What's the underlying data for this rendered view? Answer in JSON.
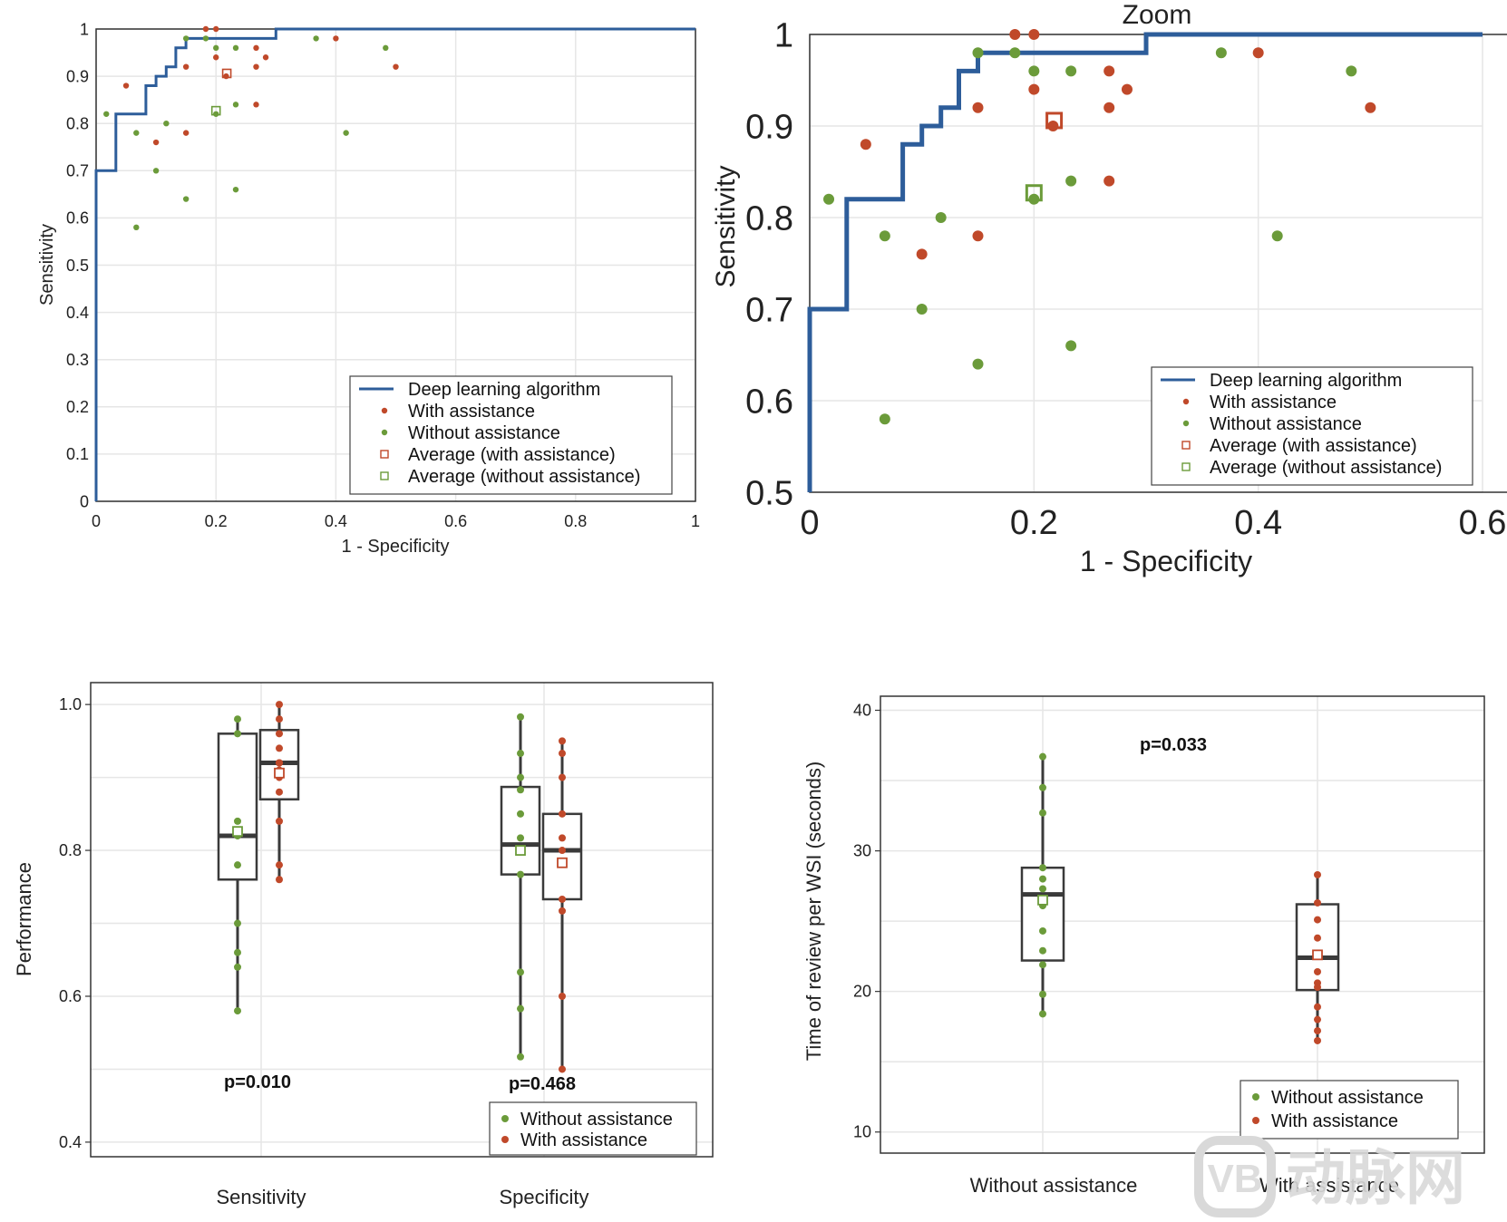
{
  "colors": {
    "algo": "#2d5d9a",
    "with": "#c0492a",
    "without": "#6b9b3a",
    "box": "#3a3a3a"
  },
  "chart_data": [
    {
      "id": "roc_full",
      "type": "scatter",
      "title": "",
      "xlabel": "1 - Specificity",
      "ylabel": "Sensitivity",
      "xlim": [
        0,
        1
      ],
      "ylim": [
        0,
        1
      ],
      "xticks": [
        "0",
        "0.2",
        "0.4",
        "0.6",
        "0.8",
        "1"
      ],
      "xtick_values": [
        0,
        0.2,
        0.4,
        0.6,
        0.8,
        1
      ],
      "yticks": [
        "0",
        "0.1",
        "0.2",
        "0.3",
        "0.4",
        "0.5",
        "0.6",
        "0.7",
        "0.8",
        "0.9",
        "1"
      ],
      "ytick_values": [
        0,
        0.1,
        0.2,
        0.3,
        0.4,
        0.5,
        0.6,
        0.7,
        0.8,
        0.9,
        1
      ],
      "legend": [
        "Deep learning algorithm",
        "With assistance",
        "Without assistance",
        "Average (with assistance)",
        "Average (without assistance)"
      ],
      "legend_position": "bottom-right"
    },
    {
      "id": "roc_zoom",
      "type": "scatter",
      "title": "Zoom",
      "xlabel": "1 - Specificity",
      "ylabel": "Sensitivity",
      "xlim": [
        0,
        0.6
      ],
      "ylim": [
        0.5,
        1
      ],
      "xticks": [
        "0",
        "0.2",
        "0.4",
        "0.6"
      ],
      "xtick_values": [
        0,
        0.2,
        0.4,
        0.6
      ],
      "yticks": [
        "0.5",
        "0.6",
        "0.7",
        "0.8",
        "0.9",
        "1"
      ],
      "ytick_values": [
        0.5,
        0.6,
        0.7,
        0.8,
        0.9,
        1
      ],
      "legend": [
        "Deep learning algorithm",
        "With assistance",
        "Without assistance",
        "Average (with assistance)",
        "Average (without assistance)"
      ],
      "legend_position": "bottom-right"
    },
    {
      "id": "performance_box",
      "type": "box",
      "xlabel": "",
      "ylabel": "Performance",
      "ylim": [
        0.38,
        1.03
      ],
      "yticks": [
        "0.4",
        "0.6",
        "0.8",
        "1.0"
      ],
      "ytick_values": [
        0.4,
        0.6,
        0.8,
        1.0
      ],
      "categories": [
        "Sensitivity",
        "Specificity"
      ],
      "p_values": [
        "p=0.010",
        "p=0.468"
      ],
      "legend": [
        "Without assistance",
        "With assistance"
      ],
      "legend_position": "bottom-right",
      "boxes": [
        {
          "category": "Sensitivity",
          "series": "without",
          "min": 0.58,
          "q1": 0.76,
          "median": 0.82,
          "q3": 0.96,
          "max": 0.98,
          "mean": 0.826,
          "points": [
            0.98,
            0.96,
            0.84,
            0.82,
            0.82,
            0.78,
            0.7,
            0.66,
            0.64,
            0.58
          ]
        },
        {
          "category": "Sensitivity",
          "series": "with",
          "min": 0.76,
          "q1": 0.87,
          "median": 0.92,
          "q3": 0.965,
          "max": 1.0,
          "mean": 0.906,
          "points": [
            1.0,
            0.98,
            0.96,
            0.94,
            0.92,
            0.92,
            0.91,
            0.9,
            0.88,
            0.84,
            0.78,
            0.76
          ]
        },
        {
          "category": "Specificity",
          "series": "without",
          "min": 0.517,
          "q1": 0.767,
          "median": 0.808,
          "q3": 0.887,
          "max": 0.983,
          "mean": 0.8,
          "points": [
            0.983,
            0.933,
            0.9,
            0.883,
            0.85,
            0.817,
            0.8,
            0.767,
            0.633,
            0.583,
            0.517
          ]
        },
        {
          "category": "Specificity",
          "series": "with",
          "min": 0.5,
          "q1": 0.733,
          "median": 0.8,
          "q3": 0.85,
          "max": 0.95,
          "mean": 0.783,
          "points": [
            0.95,
            0.933,
            0.9,
            0.85,
            0.817,
            0.8,
            0.783,
            0.733,
            0.717,
            0.6,
            0.5
          ]
        }
      ]
    },
    {
      "id": "time_box",
      "type": "box",
      "xlabel": "",
      "ylabel": "Time of review per WSI (seconds)",
      "ylim": [
        8.5,
        41
      ],
      "yticks": [
        "10",
        "20",
        "30",
        "40"
      ],
      "ytick_values": [
        10,
        20,
        30,
        40
      ],
      "categories": [
        "Without assistance",
        "With assistance"
      ],
      "p_values": [
        "p=0.033"
      ],
      "legend": [
        "Without assistance",
        "With assistance"
      ],
      "legend_position": "bottom-right",
      "boxes": [
        {
          "category": "Without assistance",
          "series": "without",
          "min": 18.4,
          "q1": 22.2,
          "median": 26.9,
          "q3": 28.8,
          "max": 36.7,
          "mean": 26.5,
          "points": [
            36.7,
            34.5,
            32.7,
            28.8,
            28.0,
            27.3,
            26.1,
            24.3,
            22.9,
            21.9,
            19.8,
            18.4
          ]
        },
        {
          "category": "With assistance",
          "series": "with",
          "min": 16.5,
          "q1": 20.1,
          "median": 22.4,
          "q3": 26.2,
          "max": 28.3,
          "mean": 22.6,
          "points": [
            28.3,
            26.3,
            25.1,
            23.8,
            22.6,
            21.4,
            20.6,
            20.3,
            18.9,
            18.0,
            17.2,
            16.5
          ]
        }
      ]
    }
  ],
  "roc_curve": [
    [
      0,
      0
    ],
    [
      0,
      0.7
    ],
    [
      0.033,
      0.7
    ],
    [
      0.033,
      0.82
    ],
    [
      0.083,
      0.82
    ],
    [
      0.083,
      0.88
    ],
    [
      0.1,
      0.88
    ],
    [
      0.1,
      0.9
    ],
    [
      0.117,
      0.9
    ],
    [
      0.117,
      0.92
    ],
    [
      0.133,
      0.92
    ],
    [
      0.133,
      0.96
    ],
    [
      0.15,
      0.96
    ],
    [
      0.15,
      0.98
    ],
    [
      0.3,
      0.98
    ],
    [
      0.3,
      1.0
    ],
    [
      1,
      1.0
    ]
  ],
  "roc_with_points": [
    [
      0.05,
      0.88
    ],
    [
      0.1,
      0.76
    ],
    [
      0.15,
      0.92
    ],
    [
      0.15,
      0.78
    ],
    [
      0.183,
      1.0
    ],
    [
      0.2,
      1.0
    ],
    [
      0.2,
      0.94
    ],
    [
      0.217,
      0.9
    ],
    [
      0.267,
      0.96
    ],
    [
      0.267,
      0.92
    ],
    [
      0.283,
      0.94
    ],
    [
      0.267,
      0.84
    ],
    [
      0.4,
      0.98
    ],
    [
      0.5,
      0.92
    ]
  ],
  "roc_without_points": [
    [
      0.017,
      0.82
    ],
    [
      0.067,
      0.78
    ],
    [
      0.067,
      0.58
    ],
    [
      0.1,
      0.7
    ],
    [
      0.117,
      0.8
    ],
    [
      0.15,
      0.98
    ],
    [
      0.15,
      0.64
    ],
    [
      0.183,
      0.98
    ],
    [
      0.2,
      0.96
    ],
    [
      0.2,
      0.82
    ],
    [
      0.233,
      0.96
    ],
    [
      0.233,
      0.84
    ],
    [
      0.233,
      0.66
    ],
    [
      0.367,
      0.98
    ],
    [
      0.417,
      0.78
    ],
    [
      0.483,
      0.96
    ]
  ],
  "roc_avg_with": [
    0.218,
    0.906
  ],
  "roc_avg_without": [
    0.2,
    0.827
  ],
  "watermark": "动脉网"
}
